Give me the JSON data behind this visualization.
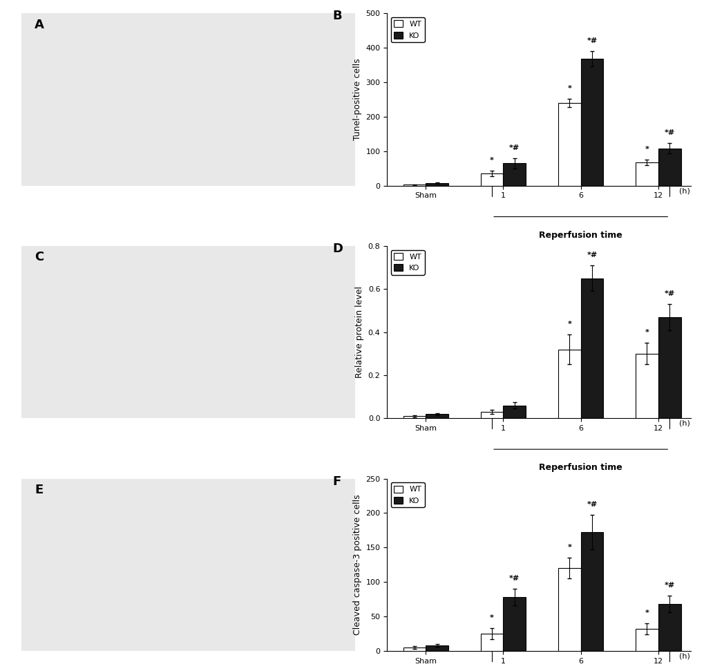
{
  "panel_B": {
    "title": "B",
    "ylabel": "Tunel-positive cells",
    "xlabel": "Reperfusion time",
    "xlabel_h": "(h)",
    "ylim": [
      0,
      500
    ],
    "yticks": [
      0,
      100,
      200,
      300,
      400,
      500
    ],
    "groups": [
      "Sham",
      "1",
      "6",
      "12"
    ],
    "wt_values": [
      3,
      35,
      240,
      68
    ],
    "ko_values": [
      8,
      65,
      368,
      108
    ],
    "wt_err": [
      1,
      8,
      12,
      8
    ],
    "ko_err": [
      2,
      15,
      22,
      15
    ],
    "wt_sig": [
      "",
      "*",
      "*",
      "*"
    ],
    "ko_sig": [
      "",
      "*#",
      "*#",
      "*#"
    ],
    "legend_wt": "WT",
    "legend_ko": "KO"
  },
  "panel_D": {
    "title": "D",
    "ylabel": "Relative protein level",
    "xlabel": "Reperfusion time",
    "xlabel_h": "(h)",
    "ylim": [
      0,
      0.8
    ],
    "yticks": [
      0.0,
      0.2,
      0.4,
      0.6,
      0.8
    ],
    "groups": [
      "Sham",
      "1",
      "6",
      "12"
    ],
    "wt_values": [
      0.01,
      0.03,
      0.32,
      0.3
    ],
    "ko_values": [
      0.02,
      0.06,
      0.65,
      0.47
    ],
    "wt_err": [
      0.005,
      0.01,
      0.07,
      0.05
    ],
    "ko_err": [
      0.005,
      0.015,
      0.06,
      0.06
    ],
    "wt_sig": [
      "",
      "",
      "*",
      "*"
    ],
    "ko_sig": [
      "",
      "",
      "*#",
      "*#"
    ],
    "legend_wt": "WT",
    "legend_ko": "KO"
  },
  "panel_F": {
    "title": "F",
    "ylabel": "Cleaved caspase-3 positive cells",
    "xlabel": "Reperfusion time",
    "xlabel_h": "(h)",
    "ylim": [
      0,
      250
    ],
    "yticks": [
      0,
      50,
      100,
      150,
      200,
      250
    ],
    "groups": [
      "Sham",
      "1",
      "6",
      "12"
    ],
    "wt_values": [
      5,
      25,
      120,
      32
    ],
    "ko_values": [
      8,
      78,
      172,
      68
    ],
    "wt_err": [
      2,
      8,
      15,
      8
    ],
    "ko_err": [
      2,
      12,
      25,
      12
    ],
    "wt_sig": [
      "",
      "*",
      "*",
      "*"
    ],
    "ko_sig": [
      "",
      "*#",
      "*#",
      "*#"
    ],
    "legend_wt": "WT",
    "legend_ko": "KO"
  },
  "bar_width": 0.35,
  "wt_color": "#ffffff",
  "ko_color": "#1a1a1a",
  "bar_edgecolor": "#000000",
  "errorbar_color": "#000000",
  "bg_color": "#ffffff",
  "font_size_label": 9,
  "font_size_tick": 8,
  "font_size_title": 13,
  "font_size_legend": 8,
  "font_size_sig": 8
}
